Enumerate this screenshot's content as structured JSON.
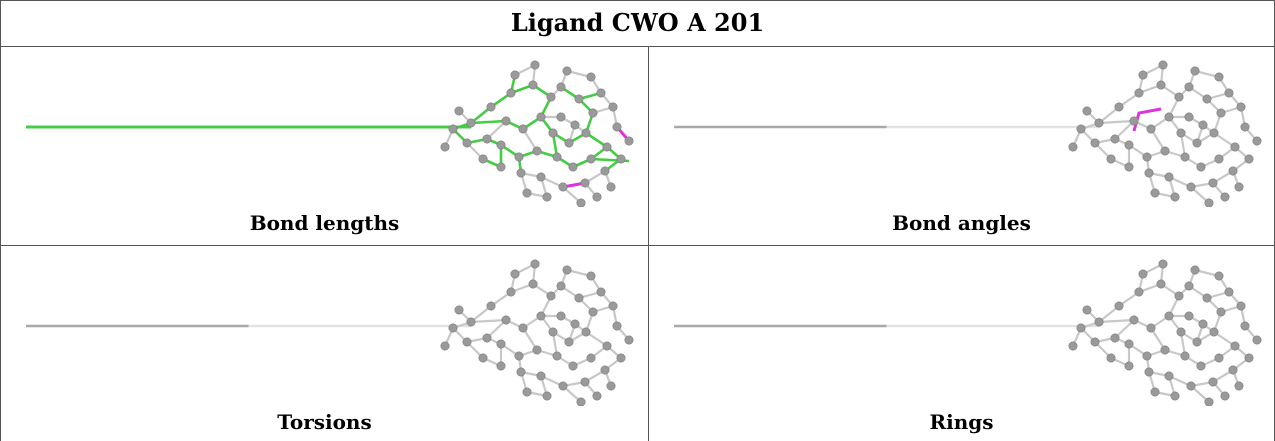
{
  "title": "Ligand CWO A 201",
  "panels": [
    {
      "caption": "Bond lengths",
      "highlight": "green-magenta"
    },
    {
      "caption": "Bond angles",
      "highlight": "magenta-angle"
    },
    {
      "caption": "Torsions",
      "highlight": "none"
    },
    {
      "caption": "Rings",
      "highlight": "none"
    }
  ],
  "colors": {
    "border": "#555555",
    "atom": "#9a9a9a",
    "bond": "#c8c8c8",
    "ok_bond": "#44cc44",
    "outlier": "#dd33dd"
  }
}
